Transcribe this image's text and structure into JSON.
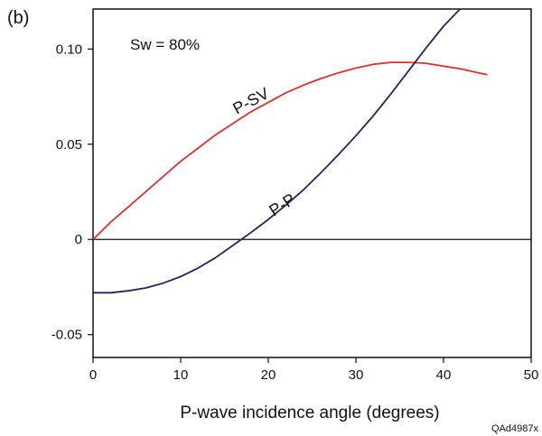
{
  "panel_label": "(b)",
  "figure_id": "QAd4987x",
  "chart_data": {
    "type": "line",
    "xlabel": "P-wave incidence angle (degrees)",
    "ylabel": "",
    "xlim": [
      0,
      50
    ],
    "ylim": [
      -0.062,
      0.121
    ],
    "x_ticks": [
      0,
      10,
      20,
      30,
      40,
      50
    ],
    "x_tick_labels": [
      "0",
      "10",
      "20",
      "30",
      "40",
      "50"
    ],
    "y_ticks": [
      -0.05,
      0,
      0.05,
      0.1
    ],
    "y_tick_labels": [
      "-0.05",
      "0",
      "0.05",
      "0.10"
    ],
    "grid": false,
    "zero_line": true,
    "annotation": "Sw = 80%",
    "series": [
      {
        "name": "P-SV",
        "color": "#e0302a",
        "x": [
          0,
          2,
          4,
          6,
          8,
          10,
          12,
          14,
          16,
          18,
          20,
          22,
          24,
          26,
          28,
          30,
          32,
          34,
          36,
          38,
          40,
          42,
          44,
          45
        ],
        "y": [
          0,
          0.009,
          0.017,
          0.025,
          0.033,
          0.041,
          0.048,
          0.055,
          0.061,
          0.067,
          0.072,
          0.077,
          0.081,
          0.0845,
          0.0875,
          0.09,
          0.092,
          0.093,
          0.093,
          0.0925,
          0.091,
          0.0895,
          0.0875,
          0.0865
        ]
      },
      {
        "name": "P-P",
        "color": "#26235e",
        "x": [
          0,
          2,
          4,
          6,
          8,
          10,
          12,
          14,
          16,
          18,
          20,
          22,
          24,
          26,
          28,
          30,
          32,
          34,
          36,
          38,
          40,
          42,
          43.9
        ],
        "y": [
          -0.028,
          -0.028,
          -0.027,
          -0.0255,
          -0.023,
          -0.0195,
          -0.015,
          -0.0095,
          -0.003,
          0.0035,
          0.0105,
          0.018,
          0.026,
          0.035,
          0.0445,
          0.0545,
          0.065,
          0.0765,
          0.0885,
          0.1005,
          0.112,
          0.1215,
          0.1285
        ]
      }
    ]
  }
}
